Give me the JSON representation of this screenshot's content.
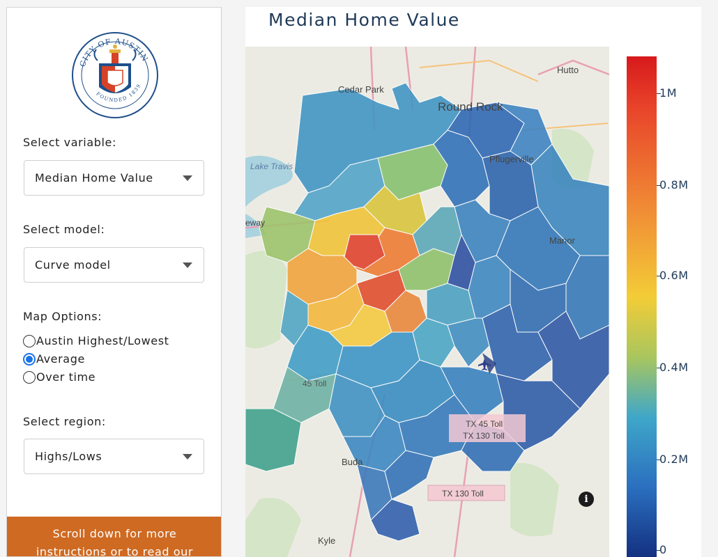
{
  "sidebar": {
    "seal": {
      "arc_text": "CITY OF AUSTIN",
      "founded_text": "FOUNDED 1839"
    },
    "variable": {
      "label": "Select variable:",
      "value": "Median Home Value"
    },
    "model": {
      "label": "Select model:",
      "value": "Curve model"
    },
    "map_options": {
      "label": "Map Options:",
      "options": [
        {
          "label": "Austin Highest/Lowest",
          "checked": false
        },
        {
          "label": "Average",
          "checked": true
        },
        {
          "label": "Over time",
          "checked": false
        }
      ]
    },
    "region": {
      "label": "Select region:",
      "value": "Highs/Lows"
    },
    "scroll_notice": {
      "line1": "Scroll down for more",
      "line2": "instructions or to read our"
    }
  },
  "main": {
    "title": "Median Home Value",
    "map_labels": {
      "cedar_park": "Cedar Park",
      "round_rock": "Round Rock",
      "hutto": "Hutto",
      "pflugerville": "Pflugerville",
      "lake_travis": "Lake Travis",
      "eway": "eway",
      "manor": "Manor",
      "toll_45": "45 Toll",
      "tx45_toll": "TX 45 Toll",
      "tx130_toll_a": "TX 130 Toll",
      "buda": "Buda",
      "tx130_toll_b": "TX 130 Toll",
      "kyle": "Kyle"
    },
    "info_symbol": "i",
    "colorbar": {
      "ticks": [
        "1M",
        "0.8M",
        "0.6M",
        "0.4M",
        "0.2M",
        "0"
      ],
      "colors": {
        "high": "#d7191c",
        "mid": "#f3cc37",
        "low": "#13307f"
      }
    }
  }
}
